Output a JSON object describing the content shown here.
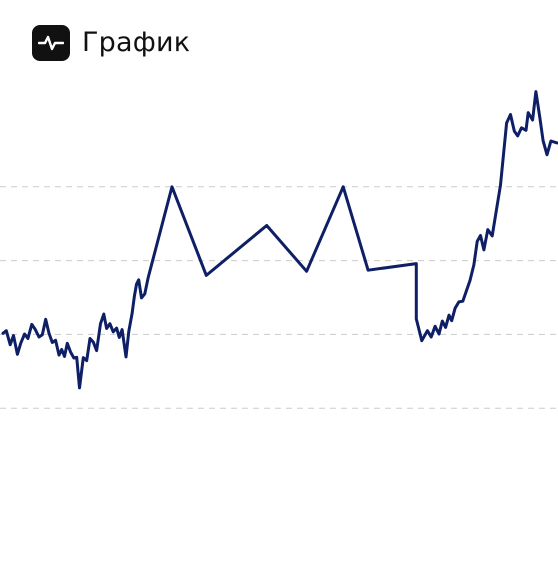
{
  "header": {
    "title": "График",
    "icon": "pulse-icon"
  },
  "colors": {
    "line": "#0e1f66",
    "grid": "#cccccc",
    "icon_bg": "#111111",
    "text": "#111111"
  },
  "chart_data": {
    "type": "line",
    "title": "График",
    "xlabel": "",
    "ylabel": "",
    "grid": "horizontal-dashed",
    "x_range": [
      0,
      100
    ],
    "y_range": [
      0,
      100
    ],
    "gridlines": [
      20,
      40,
      60,
      80
    ],
    "series": [
      {
        "values": [
          [
            0.0,
            40.3
          ],
          [
            0.6,
            41.0
          ],
          [
            1.3,
            37.2
          ],
          [
            1.9,
            39.7
          ],
          [
            2.6,
            34.6
          ],
          [
            3.2,
            37.6
          ],
          [
            3.9,
            40.1
          ],
          [
            4.5,
            38.9
          ],
          [
            5.2,
            42.7
          ],
          [
            5.8,
            41.4
          ],
          [
            6.5,
            39.3
          ],
          [
            7.1,
            39.9
          ],
          [
            7.7,
            44.1
          ],
          [
            8.3,
            40.3
          ],
          [
            8.9,
            37.8
          ],
          [
            9.5,
            38.4
          ],
          [
            10.1,
            34.4
          ],
          [
            10.6,
            35.9
          ],
          [
            11.1,
            34.0
          ],
          [
            11.6,
            37.6
          ],
          [
            12.2,
            35.2
          ],
          [
            12.8,
            33.6
          ],
          [
            13.3,
            33.8
          ],
          [
            13.8,
            25.5
          ],
          [
            14.5,
            33.7
          ],
          [
            15.1,
            32.9
          ],
          [
            15.7,
            38.9
          ],
          [
            16.3,
            37.9
          ],
          [
            16.9,
            35.6
          ],
          [
            17.6,
            42.9
          ],
          [
            18.2,
            45.5
          ],
          [
            18.7,
            41.6
          ],
          [
            19.3,
            42.9
          ],
          [
            19.9,
            40.7
          ],
          [
            20.5,
            41.7
          ],
          [
            21.0,
            39.2
          ],
          [
            21.5,
            41.3
          ],
          [
            22.2,
            33.9
          ],
          [
            22.7,
            40.8
          ],
          [
            23.3,
            45.7
          ],
          [
            23.7,
            50.2
          ],
          [
            24.1,
            53.6
          ],
          [
            24.5,
            54.8
          ],
          [
            25.0,
            49.9
          ],
          [
            25.6,
            51.0
          ],
          [
            26.2,
            55.3
          ],
          [
            30.5,
            80.0
          ],
          [
            36.7,
            56.0
          ],
          [
            47.6,
            69.5
          ],
          [
            54.8,
            57.1
          ],
          [
            61.4,
            80.0
          ],
          [
            65.9,
            57.4
          ],
          [
            74.6,
            59.2
          ],
          [
            74.6,
            44.2
          ],
          [
            75.6,
            38.3
          ],
          [
            76.6,
            41.0
          ],
          [
            77.3,
            39.3
          ],
          [
            78.0,
            42.2
          ],
          [
            78.7,
            40.1
          ],
          [
            79.3,
            43.6
          ],
          [
            79.9,
            41.9
          ],
          [
            80.5,
            45.2
          ],
          [
            81.0,
            43.7
          ],
          [
            81.6,
            47.1
          ],
          [
            82.3,
            48.8
          ],
          [
            83.0,
            49.0
          ],
          [
            84.3,
            54.6
          ],
          [
            85.0,
            58.9
          ],
          [
            85.6,
            65.2
          ],
          [
            86.2,
            66.8
          ],
          [
            86.8,
            62.9
          ],
          [
            87.5,
            68.4
          ],
          [
            88.3,
            66.7
          ],
          [
            89.8,
            80.5
          ],
          [
            90.9,
            97.3
          ],
          [
            91.6,
            99.6
          ],
          [
            92.3,
            95.1
          ],
          [
            92.9,
            93.8
          ],
          [
            93.6,
            96.0
          ],
          [
            94.4,
            95.3
          ],
          [
            94.8,
            100.1
          ],
          [
            95.6,
            98.1
          ],
          [
            96.2,
            105.8
          ],
          [
            96.9,
            98.8
          ],
          [
            97.5,
            92.5
          ],
          [
            98.2,
            88.7
          ],
          [
            98.9,
            92.4
          ],
          [
            100.0,
            91.9
          ]
        ]
      }
    ]
  }
}
